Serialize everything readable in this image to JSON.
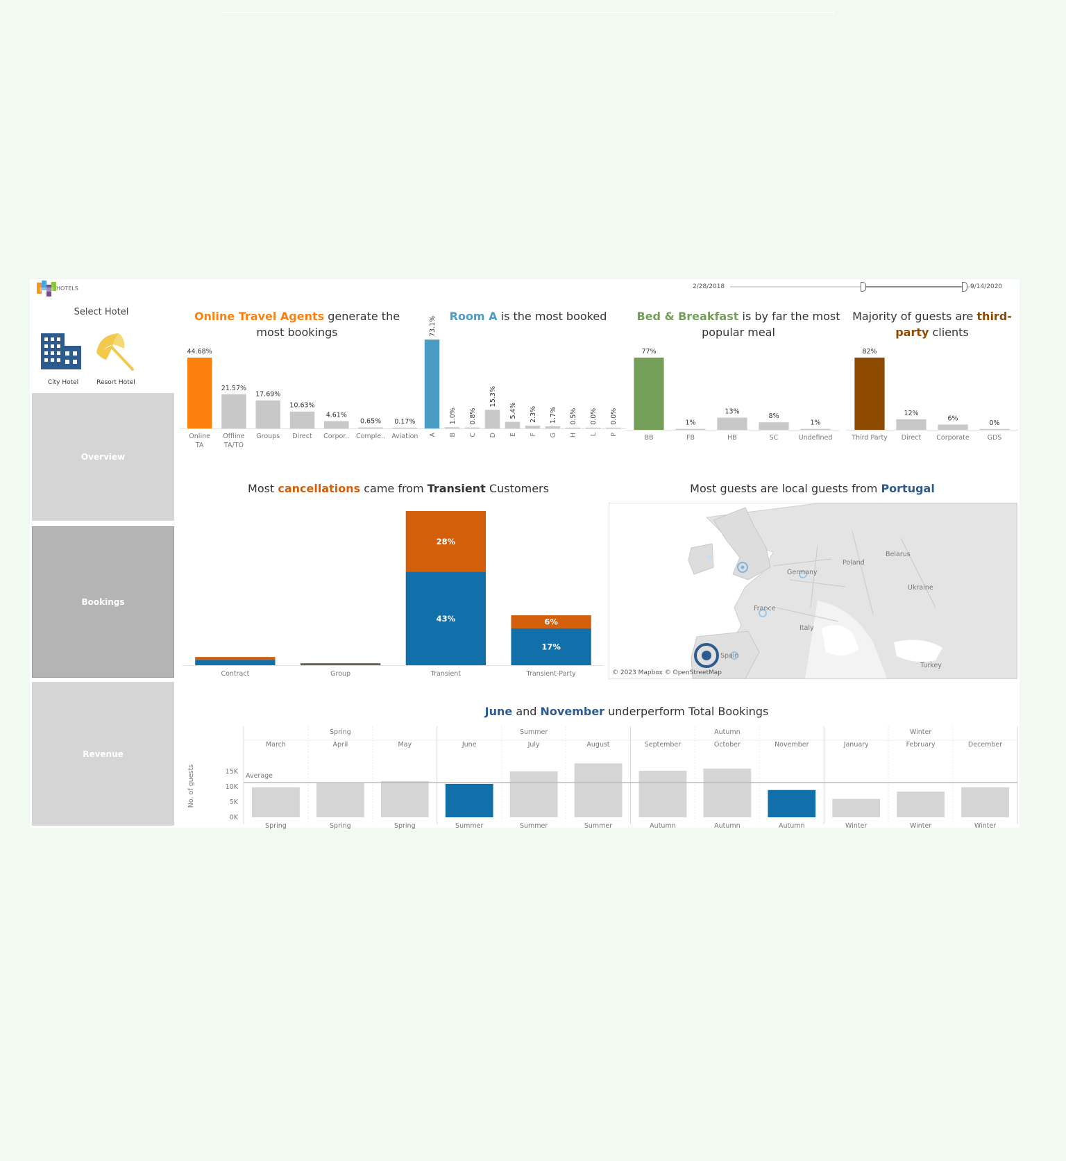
{
  "header": {
    "logo_text": "HOTELS",
    "date_start": "2/28/2018",
    "date_end": "9/14/2020"
  },
  "sidebar": {
    "select_label": "Select Hotel",
    "hotels": [
      {
        "label": "City Hotel",
        "icon": "city-hotel-icon"
      },
      {
        "label": "Resort Hotel",
        "icon": "resort-hotel-icon"
      }
    ],
    "nav": [
      {
        "label": "Overview",
        "active": false
      },
      {
        "label": "Bookings",
        "active": true
      },
      {
        "label": "Revenue",
        "active": false
      }
    ]
  },
  "titles": {
    "channel": {
      "hl": "Online Travel Agents",
      "rest1": " generate the",
      "rest2": "most bookings"
    },
    "room": {
      "hl": "Room A",
      "rest": " is the most booked"
    },
    "meal": {
      "hl": "Bed & Breakfast",
      "rest1": " is by far the most",
      "rest2": "popular meal"
    },
    "segment": {
      "pre": "Majority of guests are ",
      "hl1": "third-",
      "hl2": "party",
      "rest": " clients"
    },
    "cancel": {
      "pre": "Most ",
      "hl": "cancellations",
      "mid": " came from ",
      "bold": "Transient",
      "rest": " Customers"
    },
    "map": {
      "pre": "Most guests are local guests from ",
      "hl": "Portugal"
    },
    "monthly": {
      "hl1": "June",
      "mid": " and ",
      "hl2": "November",
      "rest": " underperform Total Bookings"
    }
  },
  "map": {
    "attribution": "© 2023 Mapbox © OpenStreetMap",
    "labels": [
      "Poland",
      "Belarus",
      "Ukraine",
      "Germany",
      "France",
      "Italy",
      "Spain",
      "Turkey"
    ]
  },
  "colors": {
    "orange": "#fd7f0e",
    "teal": "#4a9cc6",
    "green": "#739f59",
    "brown": "#8e4a00",
    "cancel_orange": "#d45f0b",
    "blue": "#1170aa",
    "gray": "#c8c8c8",
    "navy": "#2e5b8e",
    "yellow": "#f2c94c"
  },
  "chart_data": [
    {
      "id": "channel",
      "type": "bar",
      "categories": [
        "Online TA",
        "Offline TA/TO",
        "Groups",
        "Direct",
        "Corpor..",
        "Comple..",
        "Aviation"
      ],
      "values": [
        44.68,
        21.57,
        17.69,
        10.63,
        4.61,
        0.65,
        0.17
      ],
      "labels": [
        "44.68%",
        "21.57%",
        "17.69%",
        "10.63%",
        "4.61%",
        "0.65%",
        "0.17%"
      ],
      "highlight": 0
    },
    {
      "id": "room",
      "type": "bar",
      "categories": [
        "A",
        "B",
        "C",
        "D",
        "E",
        "F",
        "G",
        "H",
        "L",
        "P"
      ],
      "values": [
        73.1,
        1.0,
        0.8,
        15.3,
        5.4,
        2.3,
        1.7,
        0.5,
        0.0,
        0.0
      ],
      "labels": [
        "73.1%",
        "1.0%",
        "0.8%",
        "15.3%",
        "5.4%",
        "2.3%",
        "1.7%",
        "0.5%",
        "0.0%",
        "0.0%"
      ],
      "highlight": 0
    },
    {
      "id": "meal",
      "type": "bar",
      "categories": [
        "BB",
        "FB",
        "HB",
        "SC",
        "Undefined"
      ],
      "values": [
        77,
        1,
        13,
        8,
        1
      ],
      "labels": [
        "77%",
        "1%",
        "13%",
        "8%",
        "1%"
      ],
      "highlight": 0
    },
    {
      "id": "segment",
      "type": "bar",
      "categories": [
        "Third Party",
        "Direct",
        "Corporate",
        "GDS"
      ],
      "values": [
        82,
        12,
        6,
        0
      ],
      "labels": [
        "82%",
        "12%",
        "6%",
        "0%"
      ],
      "highlight": 0
    },
    {
      "id": "cancel",
      "type": "bar",
      "stacked": true,
      "categories": [
        "Contract",
        "Group",
        "Transient",
        "Transient-Party"
      ],
      "series": [
        {
          "values": [
            2.5,
            0.2,
            43,
            17
          ],
          "labels": [
            "",
            "",
            "43%",
            "17%"
          ]
        },
        {
          "values": [
            1.3,
            0.4,
            28,
            6
          ],
          "labels": [
            "",
            "",
            "28%",
            "6%"
          ]
        }
      ]
    },
    {
      "id": "monthly",
      "type": "bar",
      "ylabel": "No. of guests",
      "yticks": [
        "15K",
        "10K",
        "5K",
        "0K"
      ],
      "ylim": [
        0,
        17000
      ],
      "average": 11300,
      "average_label": "Average",
      "seasons": [
        "Spring",
        "Summer",
        "Autumn",
        "Winter"
      ],
      "categories": [
        "March",
        "April",
        "May",
        "June",
        "July",
        "August",
        "September",
        "October",
        "November",
        "January",
        "February",
        "December"
      ],
      "season_of": [
        "Spring",
        "Spring",
        "Spring",
        "Summer",
        "Summer",
        "Summer",
        "Autumn",
        "Autumn",
        "Autumn",
        "Winter",
        "Winter",
        "Winter"
      ],
      "values": [
        9800,
        11100,
        11800,
        10900,
        15000,
        17600,
        15200,
        15900,
        8900,
        6000,
        8400,
        9800
      ],
      "highlight": [
        3,
        8
      ]
    }
  ]
}
